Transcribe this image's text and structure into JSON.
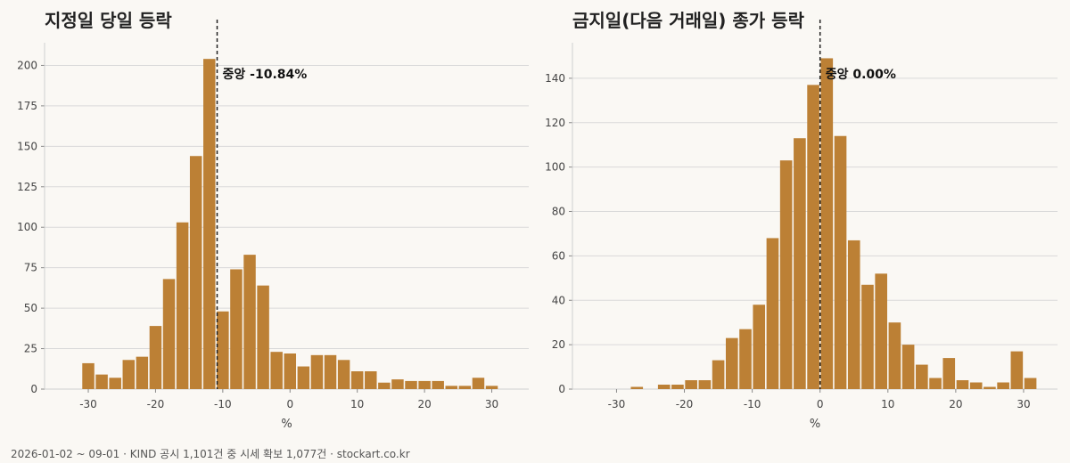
{
  "footer": "2026-01-02 ~ 09-01 · KIND 공시 1,101건 중 시세 확보 1,077건 · stockart.co.kr",
  "colors": {
    "bar": "#bc8035",
    "grid": "#d9d9d9",
    "axis": "#cfcfcf",
    "background": "#faf8f4",
    "median_line": "#222222"
  },
  "chart_data": [
    {
      "type": "bar",
      "title": "지정일 당일 등락",
      "xlabel": "%",
      "ylabel": "",
      "xlim": [
        -36.5,
        35.5
      ],
      "ylim": [
        0,
        214
      ],
      "bin_width": 2,
      "xticks": [
        -30,
        -20,
        -10,
        0,
        10,
        20,
        30
      ],
      "yticks": [
        0,
        25,
        50,
        75,
        100,
        125,
        150,
        175,
        200
      ],
      "grid": "horizontal",
      "bins": [
        {
          "x": -30,
          "count": 16
        },
        {
          "x": -28,
          "count": 9
        },
        {
          "x": -26,
          "count": 7
        },
        {
          "x": -24,
          "count": 18
        },
        {
          "x": -22,
          "count": 20
        },
        {
          "x": -20,
          "count": 39
        },
        {
          "x": -18,
          "count": 68
        },
        {
          "x": -16,
          "count": 103
        },
        {
          "x": -14,
          "count": 144
        },
        {
          "x": -12,
          "count": 204
        },
        {
          "x": -10,
          "count": 48
        },
        {
          "x": -8,
          "count": 74
        },
        {
          "x": -6,
          "count": 83
        },
        {
          "x": -4,
          "count": 64
        },
        {
          "x": -2,
          "count": 23
        },
        {
          "x": 0,
          "count": 22
        },
        {
          "x": 2,
          "count": 14
        },
        {
          "x": 4,
          "count": 21
        },
        {
          "x": 6,
          "count": 21
        },
        {
          "x": 8,
          "count": 18
        },
        {
          "x": 10,
          "count": 11
        },
        {
          "x": 12,
          "count": 11
        },
        {
          "x": 14,
          "count": 4
        },
        {
          "x": 16,
          "count": 6
        },
        {
          "x": 18,
          "count": 5
        },
        {
          "x": 20,
          "count": 5
        },
        {
          "x": 22,
          "count": 5
        },
        {
          "x": 24,
          "count": 2
        },
        {
          "x": 26,
          "count": 2
        },
        {
          "x": 28,
          "count": 7
        },
        {
          "x": 30,
          "count": 2
        }
      ],
      "median": -10.84,
      "median_label": "중앙 -10.84%"
    },
    {
      "type": "bar",
      "title": "금지일(다음 거래일) 종가 등락",
      "xlabel": "%",
      "ylabel": "",
      "xlim": [
        -36.5,
        35
      ],
      "ylim": [
        0,
        156
      ],
      "bin_width": 2,
      "xticks": [
        -30,
        -20,
        -10,
        0,
        10,
        20,
        30
      ],
      "yticks": [
        0,
        20,
        40,
        60,
        80,
        100,
        120,
        140
      ],
      "grid": "horizontal",
      "bins": [
        {
          "x": -27,
          "count": 1
        },
        {
          "x": -23,
          "count": 2
        },
        {
          "x": -21,
          "count": 2
        },
        {
          "x": -19,
          "count": 4
        },
        {
          "x": -17,
          "count": 4
        },
        {
          "x": -15,
          "count": 13
        },
        {
          "x": -13,
          "count": 23
        },
        {
          "x": -11,
          "count": 27
        },
        {
          "x": -9,
          "count": 38
        },
        {
          "x": -7,
          "count": 68
        },
        {
          "x": -5,
          "count": 103
        },
        {
          "x": -3,
          "count": 113
        },
        {
          "x": -1,
          "count": 137
        },
        {
          "x": 1,
          "count": 149
        },
        {
          "x": 3,
          "count": 114
        },
        {
          "x": 5,
          "count": 67
        },
        {
          "x": 7,
          "count": 47
        },
        {
          "x": 9,
          "count": 52
        },
        {
          "x": 11,
          "count": 30
        },
        {
          "x": 13,
          "count": 20
        },
        {
          "x": 15,
          "count": 11
        },
        {
          "x": 17,
          "count": 5
        },
        {
          "x": 19,
          "count": 14
        },
        {
          "x": 21,
          "count": 4
        },
        {
          "x": 23,
          "count": 3
        },
        {
          "x": 25,
          "count": 1
        },
        {
          "x": 27,
          "count": 3
        },
        {
          "x": 29,
          "count": 17
        },
        {
          "x": 31,
          "count": 5
        }
      ],
      "median": 0.0,
      "median_label": "중앙 0.00%"
    }
  ]
}
